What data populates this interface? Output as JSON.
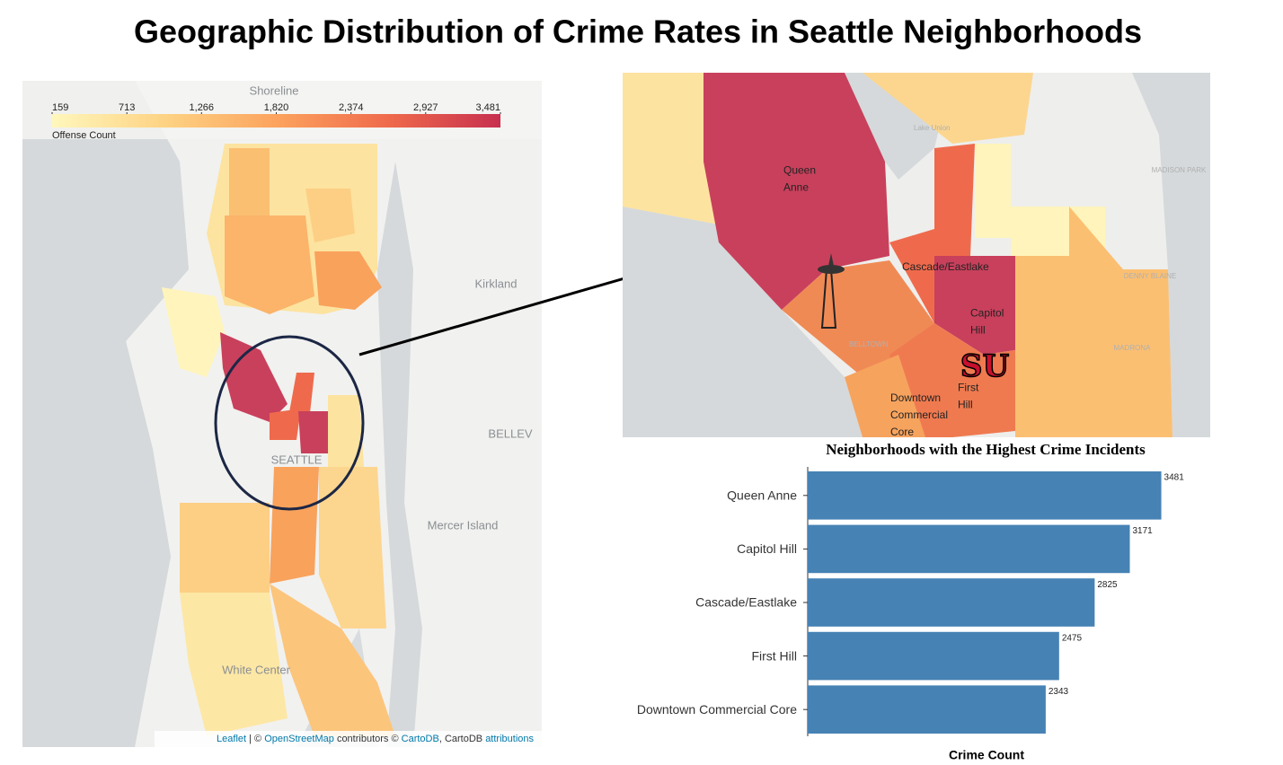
{
  "title": "Geographic Distribution of Crime Rates in Seattle Neighborhoods",
  "map": {
    "place_labels": [
      "Shoreline",
      "Kirkland",
      "BELLEV",
      "SEATTLE",
      "Mercer Island",
      "White Center"
    ],
    "legend": {
      "title": "Offense Count",
      "range": [
        159,
        3481
      ],
      "ticks": [
        159,
        713,
        {
          "value": 1266,
          "label": "1,266"
        },
        {
          "value": 1820,
          "label": "1,820"
        },
        {
          "value": 2374,
          "label": "2,374"
        },
        {
          "value": 2927,
          "label": "2,927"
        },
        {
          "value": 3481,
          "label": "3,481"
        }
      ],
      "colors": [
        "#fff7bc",
        "#fdd384",
        "#fca35e",
        "#ef6a4c",
        "#c7304f"
      ]
    },
    "attribution": {
      "leaflet": "Leaflet",
      "sep": "| ©",
      "osm": "OpenStreetMap",
      "mid": "contributors ©",
      "carto": "CartoDB",
      "tail": ", CartoDB",
      "attr": "attributions"
    }
  },
  "zoom_map": {
    "labels": [
      "Queen Anne",
      "Cascade/Eastlake",
      "Capitol Hill",
      "First Hill",
      "Downtown Commercial Core"
    ],
    "place_labels": [
      "Lake Union",
      "MADISON PARK",
      "BELLTOWN",
      "DENNY BLAINE",
      "MADRONA"
    ]
  },
  "chart_data": {
    "type": "bar",
    "orientation": "horizontal",
    "title": "Neighborhoods with the Highest Crime Incidents",
    "categories": [
      "Queen Anne",
      "Capitol Hill",
      "Cascade/Eastlake",
      "First Hill",
      "Downtown Commercial Core"
    ],
    "values": [
      3481,
      3171,
      2825,
      2475,
      2343
    ],
    "color": "#4682b4",
    "xlabel": "Crime Count",
    "xlim": [
      0,
      3600
    ]
  }
}
